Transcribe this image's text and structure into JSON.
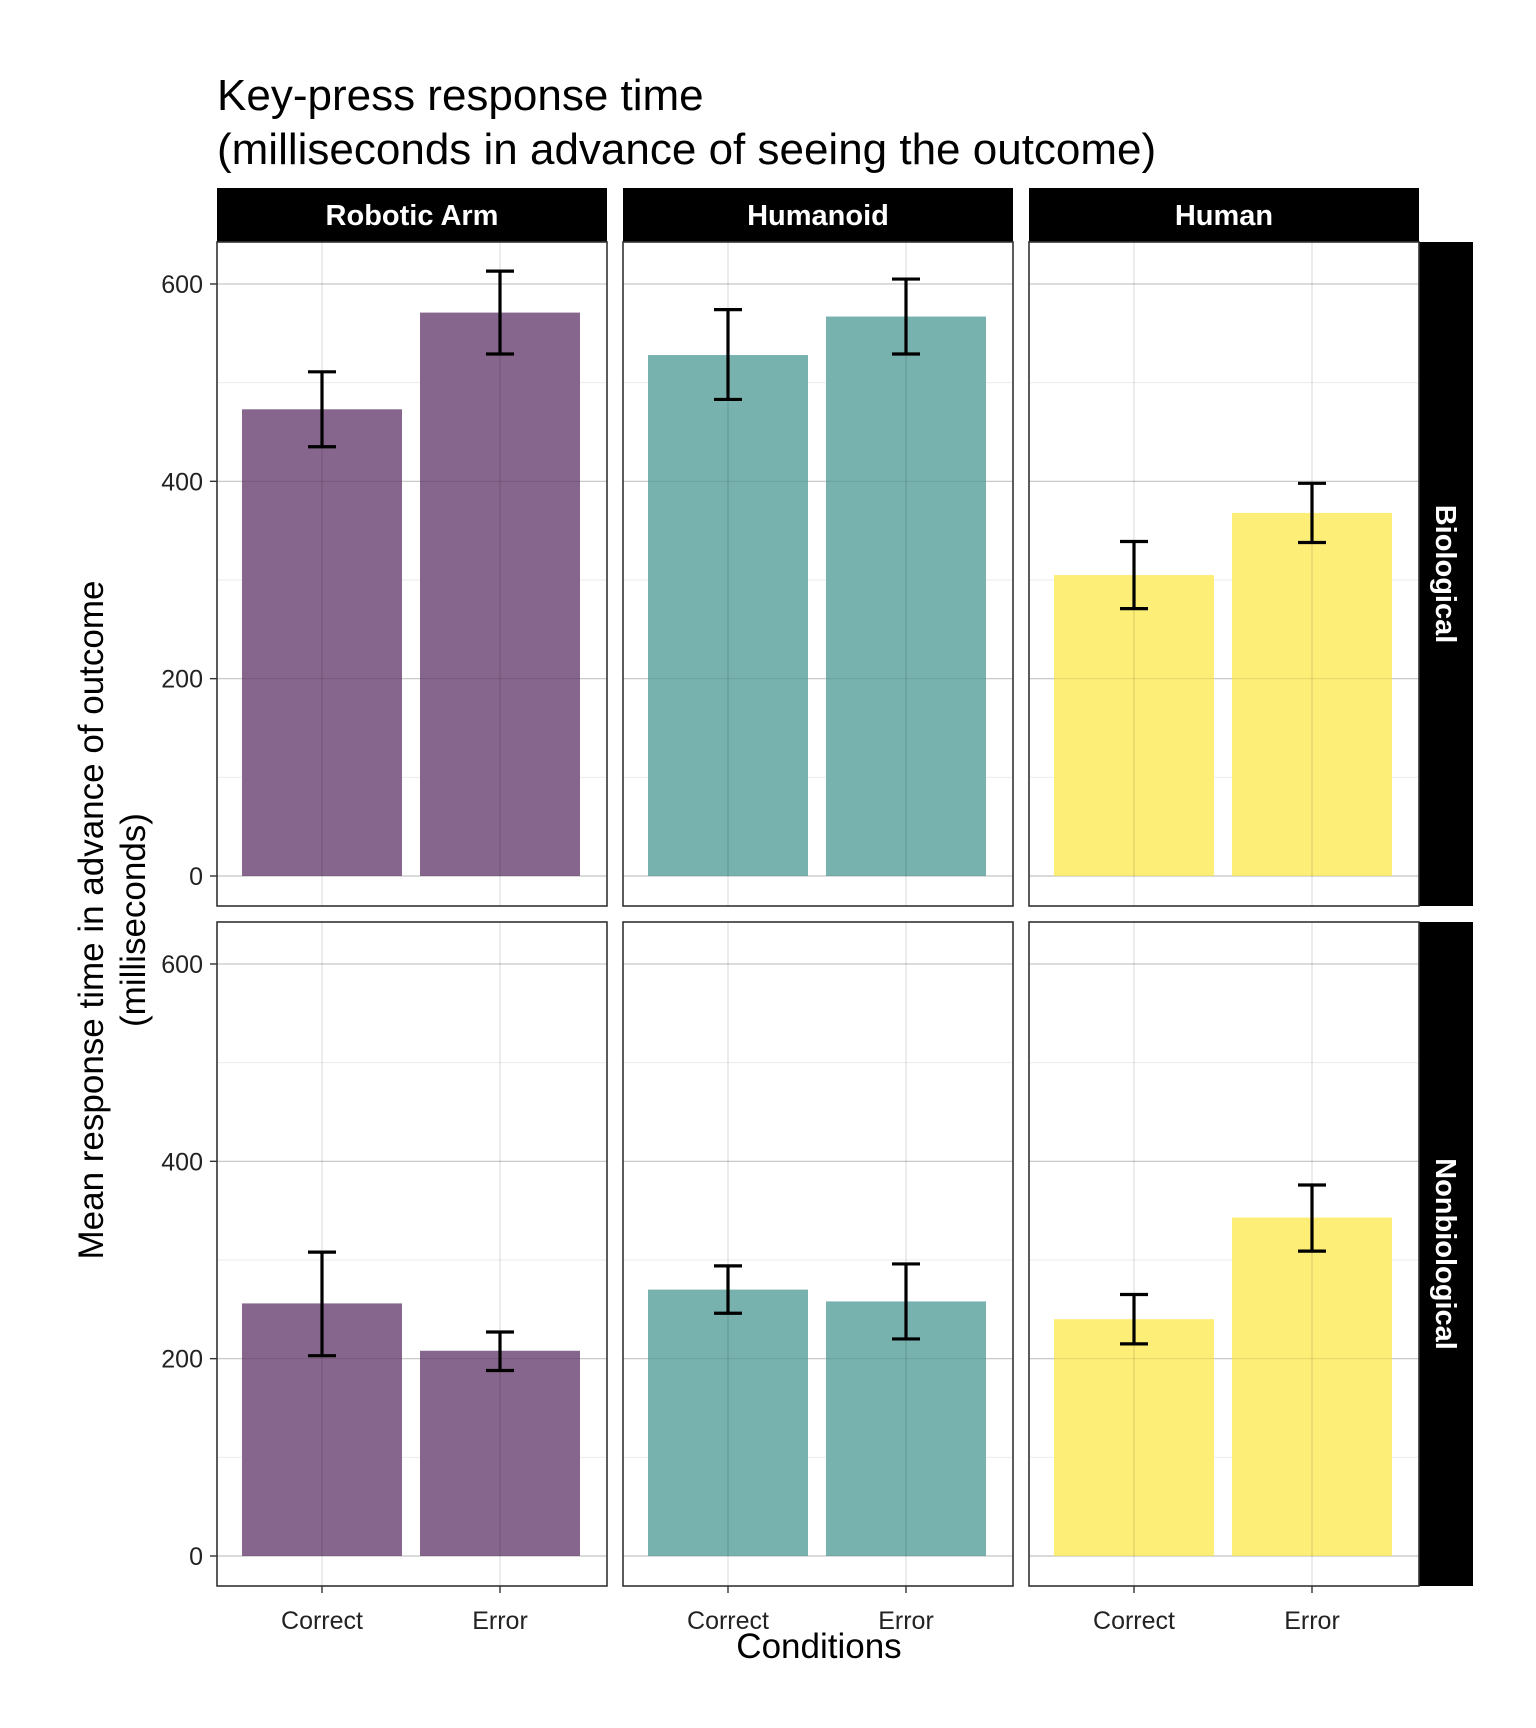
{
  "chart_data": {
    "type": "bar",
    "title_lines": [
      "Key-press response time",
      "(milliseconds in advance of seeing the outcome)"
    ],
    "xlabel": "Conditions",
    "ylabel_lines": [
      "Mean response time in advance of outcome",
      "(milliseconds)"
    ],
    "ylim": [
      0,
      650
    ],
    "yticks": [
      0,
      200,
      400,
      600
    ],
    "grid": true,
    "categories": [
      "Correct",
      "Error"
    ],
    "column_facets": [
      "Robotic Arm",
      "Humanoid",
      "Human"
    ],
    "row_facets": [
      "Biological",
      "Nonbiological"
    ],
    "colors": {
      "Robotic Arm": "#86668c",
      "Humanoid": "#78b2ae",
      "Human": "#fdee78"
    },
    "panels": [
      {
        "row": "Biological",
        "col": "Robotic Arm",
        "values": [
          473,
          571
        ],
        "err_low": [
          435,
          529
        ],
        "err_high": [
          511,
          613
        ]
      },
      {
        "row": "Biological",
        "col": "Humanoid",
        "values": [
          528,
          567
        ],
        "err_low": [
          483,
          529
        ],
        "err_high": [
          574,
          605
        ]
      },
      {
        "row": "Biological",
        "col": "Human",
        "values": [
          305,
          368
        ],
        "err_low": [
          271,
          338
        ],
        "err_high": [
          339,
          398
        ]
      },
      {
        "row": "Nonbiological",
        "col": "Robotic Arm",
        "values": [
          256,
          208
        ],
        "err_low": [
          203,
          188
        ],
        "err_high": [
          308,
          227
        ]
      },
      {
        "row": "Nonbiological",
        "col": "Humanoid",
        "values": [
          270,
          258
        ],
        "err_low": [
          246,
          220
        ],
        "err_high": [
          294,
          296
        ]
      },
      {
        "row": "Nonbiological",
        "col": "Human",
        "values": [
          240,
          343
        ],
        "err_low": [
          215,
          309
        ],
        "err_high": [
          265,
          376
        ]
      }
    ]
  }
}
